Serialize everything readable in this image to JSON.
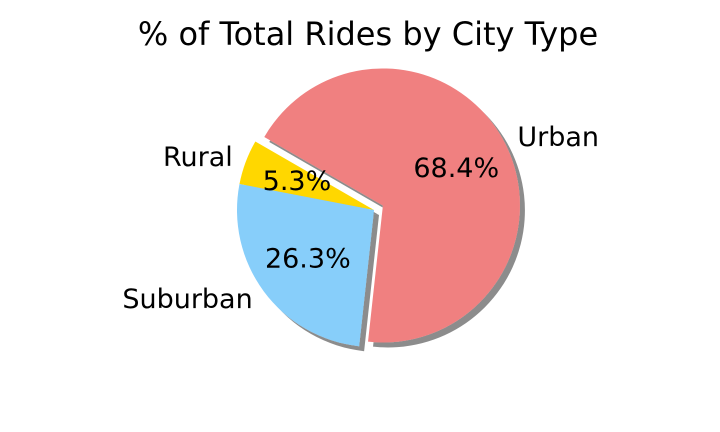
{
  "chart_data": {
    "type": "pie",
    "title": "% of Total Rides by City Type",
    "slices": [
      {
        "label": "Rural",
        "value": 5.3,
        "pct_label": "5.3%",
        "color": "#FFD700",
        "explode": false
      },
      {
        "label": "Suburban",
        "value": 26.3,
        "pct_label": "26.3%",
        "color": "#87CEFA",
        "explode": false
      },
      {
        "label": "Urban",
        "value": 68.4,
        "pct_label": "68.4%",
        "color": "#F08080",
        "explode": true
      }
    ],
    "start_angle_deg": 150,
    "direction": "counterclockwise",
    "shadow": true
  }
}
